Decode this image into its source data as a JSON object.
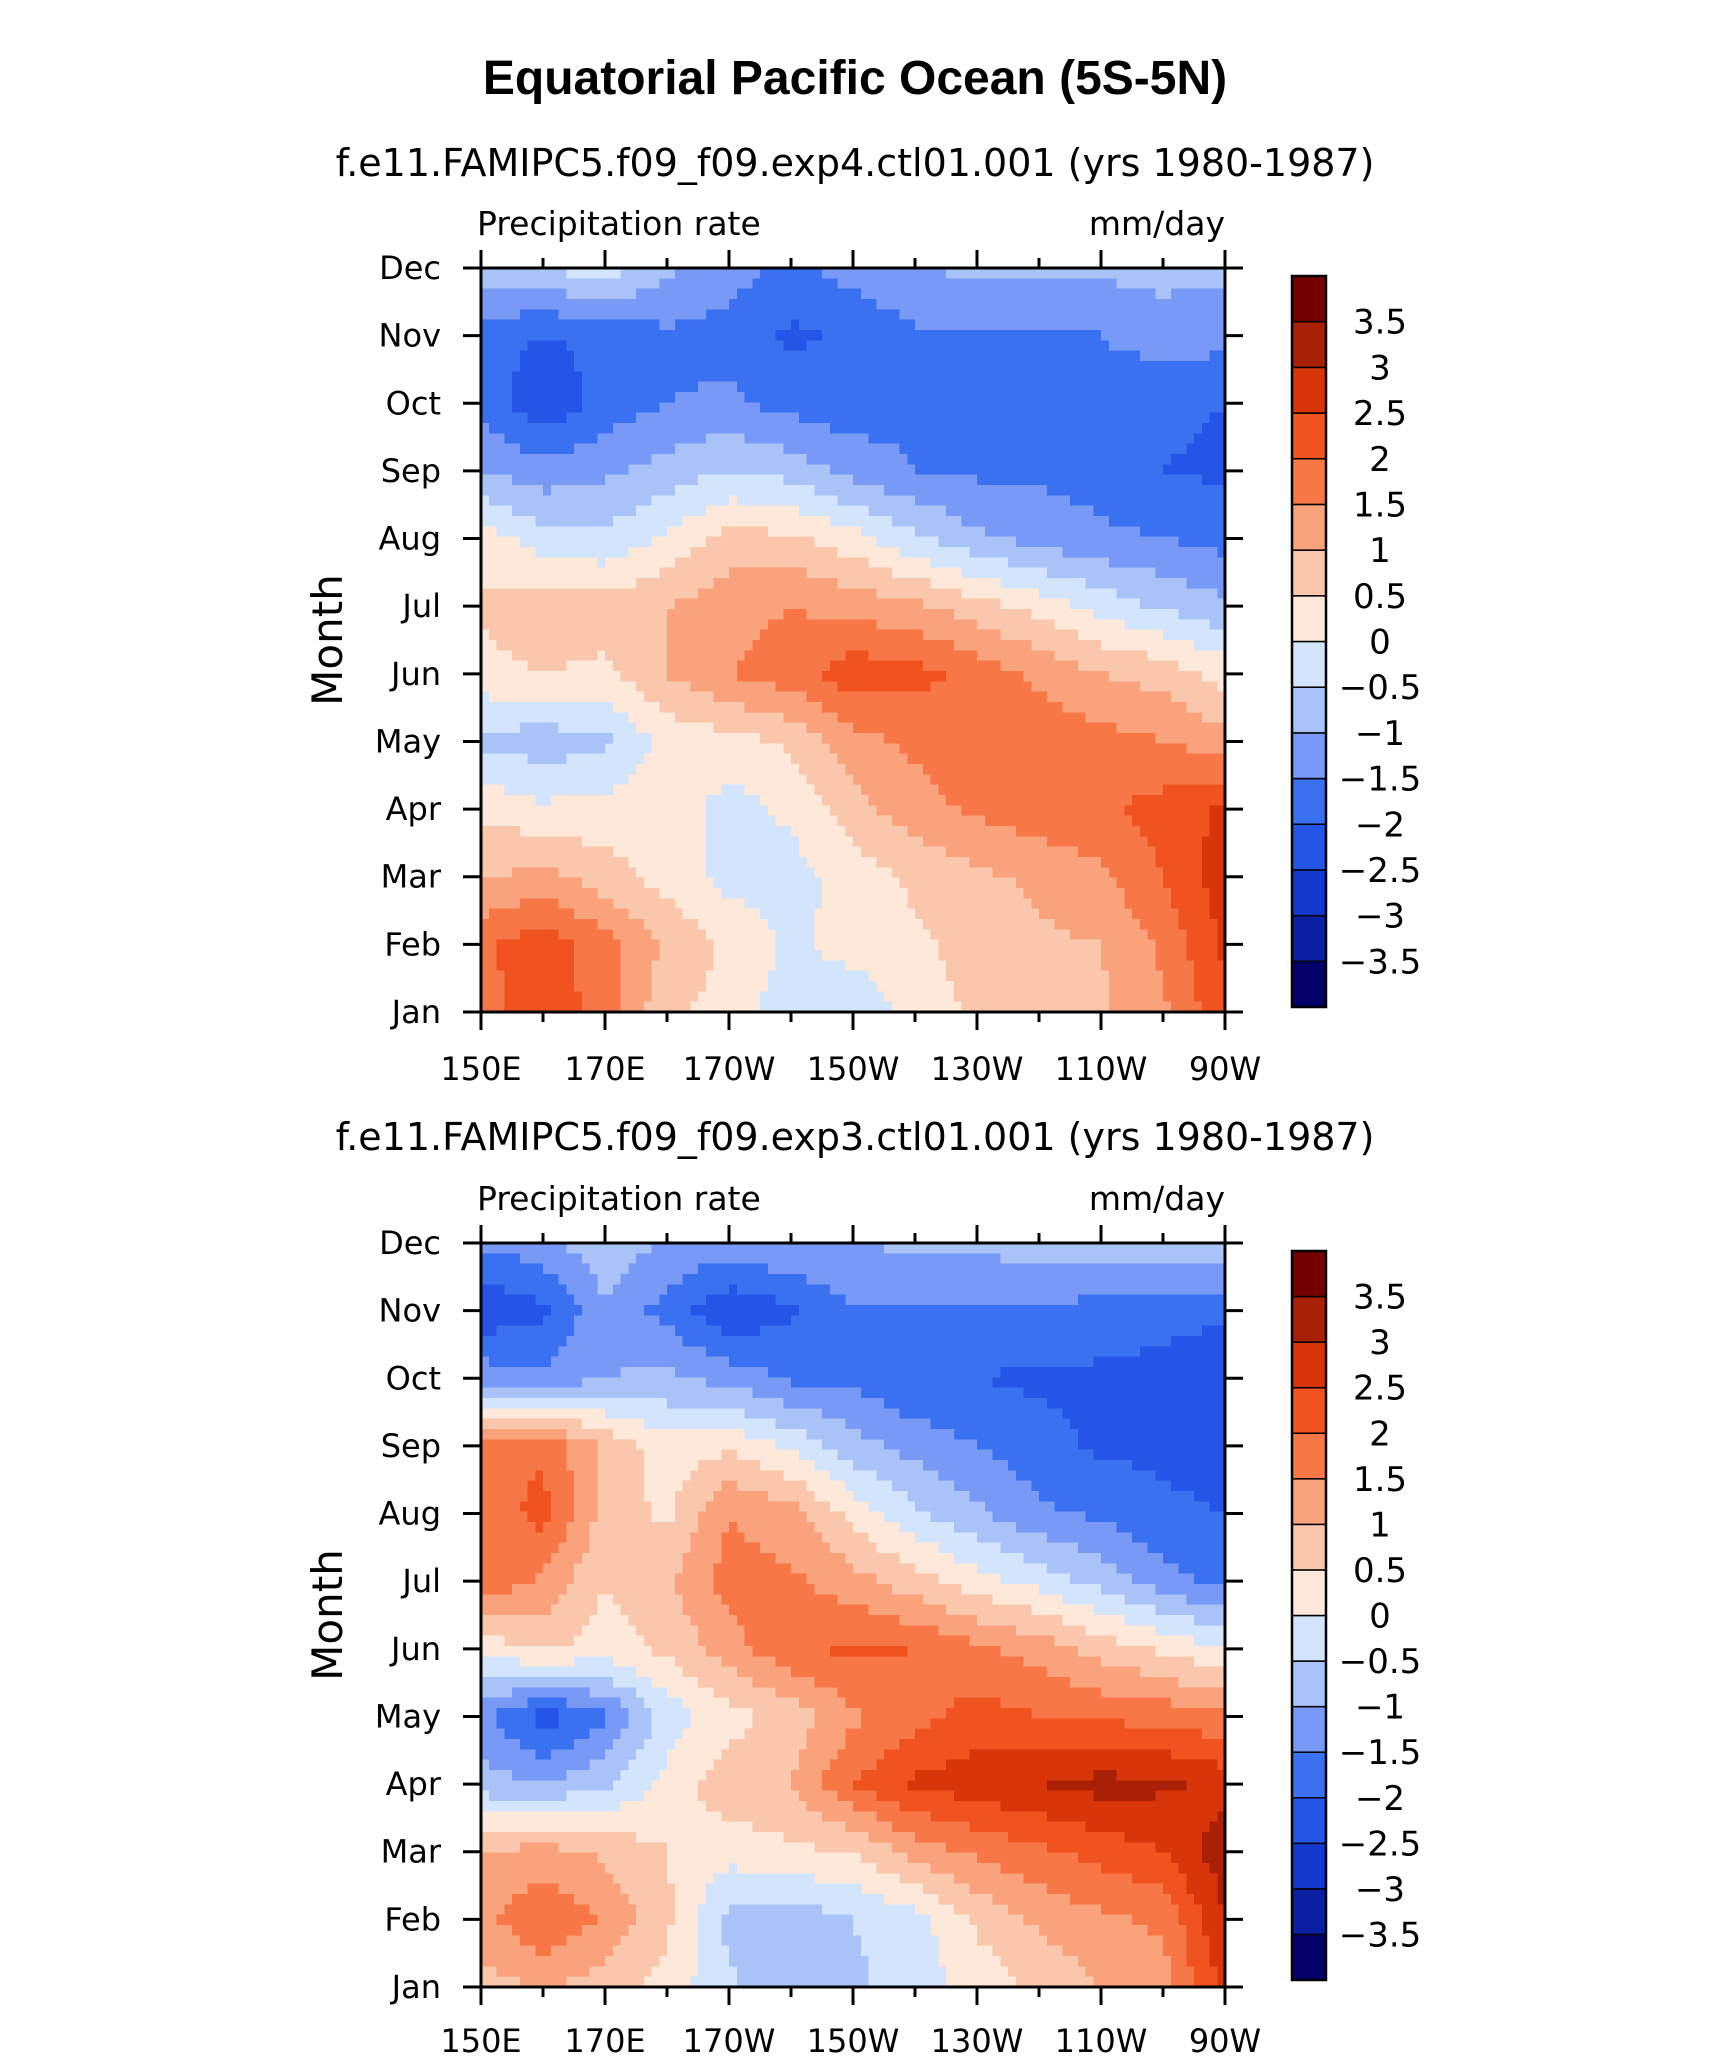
{
  "figure_title": "Equatorial Pacific Ocean (5S-5N)",
  "chart_data": [
    {
      "type": "heatmap",
      "title": "f.e11.FAMIPC5.f09_f09.exp4.ctl01.001 (yrs 1980-1987)",
      "left_label": "Precipitation rate",
      "right_label": "mm/day",
      "ylabel": "Month",
      "xlabel": "",
      "x_ticks": [
        "150E",
        "170E",
        "170W",
        "150W",
        "130W",
        "110W",
        "90W"
      ],
      "x_range": [
        150,
        270
      ],
      "y_ticks": [
        "Jan",
        "Feb",
        "Mar",
        "Apr",
        "May",
        "Jun",
        "Jul",
        "Aug",
        "Sep",
        "Oct",
        "Nov",
        "Dec"
      ],
      "levels": [
        -3.5,
        -3,
        -2.5,
        -2,
        -1.5,
        -1,
        -0.5,
        0,
        0.5,
        1,
        1.5,
        2,
        2.5,
        3,
        3.5
      ],
      "level_labels": [
        "−3.5",
        "−3",
        "−2.5",
        "−2",
        "−1.5",
        "−1",
        "−0.5",
        "0",
        "0.5",
        "1",
        "1.5",
        "2",
        "2.5",
        "3",
        "3.5"
      ],
      "colors": [
        "#03006a",
        "#0a1fa3",
        "#1339cf",
        "#2455e6",
        "#3a71f0",
        "#7899f5",
        "#a9c3f8",
        "#d3e5fc",
        "#fde8da",
        "#fbc7ac",
        "#f9a27b",
        "#f77746",
        "#f0531f",
        "#d8360a",
        "#a92006",
        "#750000"
      ],
      "x_lon": [
        150,
        160,
        170,
        180,
        190,
        200,
        210,
        220,
        230,
        240,
        250,
        260,
        270
      ],
      "values": [
        [
          1.8,
          2.3,
          1.8,
          0.6,
          0.3,
          -0.3,
          -0.4,
          0.2,
          0.6,
          0.8,
          0.9,
          1.4,
          2.4
        ],
        [
          1.9,
          2.3,
          1.7,
          0.9,
          0.4,
          -0.1,
          0.2,
          0.4,
          0.7,
          0.9,
          1.0,
          1.6,
          2.6
        ],
        [
          0.9,
          1.2,
          0.7,
          0.3,
          -0.2,
          -0.2,
          0.2,
          0.6,
          0.9,
          1.1,
          1.4,
          2.0,
          2.8
        ],
        [
          0.4,
          0.1,
          0.2,
          0.3,
          -0.2,
          0.1,
          0.8,
          1.3,
          1.6,
          1.8,
          1.9,
          2.2,
          2.6
        ],
        [
          -0.6,
          -0.8,
          -0.6,
          0.2,
          0.3,
          0.6,
          1.3,
          1.6,
          1.8,
          1.8,
          1.7,
          1.5,
          1.2
        ],
        [
          0.3,
          0.5,
          0.4,
          1.0,
          1.5,
          1.8,
          2.3,
          2.2,
          1.8,
          1.4,
          1.0,
          0.8,
          0.3
        ],
        [
          0.6,
          0.9,
          0.7,
          1.0,
          1.3,
          1.5,
          1.3,
          1.1,
          0.7,
          0.3,
          -0.2,
          -0.6,
          -0.9
        ],
        [
          0.3,
          -0.3,
          -0.4,
          0.1,
          0.7,
          0.6,
          0.2,
          -0.4,
          -0.9,
          -1.2,
          -1.4,
          -1.5,
          -1.7
        ],
        [
          -1.0,
          -1.3,
          -1.1,
          -0.8,
          -0.5,
          -0.7,
          -1.2,
          -1.5,
          -1.6,
          -1.6,
          -1.7,
          -2.0,
          -2.1
        ],
        [
          -1.7,
          -2.4,
          -1.8,
          -1.5,
          -1.4,
          -1.7,
          -1.8,
          -1.6,
          -1.6,
          -1.6,
          -1.6,
          -1.9,
          -2.0
        ],
        [
          -1.8,
          -2.0,
          -1.9,
          -1.6,
          -1.7,
          -2.1,
          -1.9,
          -1.6,
          -1.5,
          -1.6,
          -1.5,
          -1.3,
          -1.3
        ],
        [
          -0.7,
          -0.5,
          -0.2,
          -0.9,
          -1.3,
          -1.6,
          -1.3,
          -1.0,
          -0.9,
          -0.9,
          -0.9,
          -0.8,
          -0.9
        ]
      ]
    },
    {
      "type": "heatmap",
      "title": "f.e11.FAMIPC5.f09_f09.exp3.ctl01.001 (yrs 1980-1987)",
      "left_label": "Precipitation rate",
      "right_label": "mm/day",
      "ylabel": "Month",
      "xlabel": "",
      "x_ticks": [
        "150E",
        "170E",
        "170W",
        "150W",
        "130W",
        "110W",
        "90W"
      ],
      "x_range": [
        150,
        270
      ],
      "y_ticks": [
        "Jan",
        "Feb",
        "Mar",
        "Apr",
        "May",
        "Jun",
        "Jul",
        "Aug",
        "Sep",
        "Oct",
        "Nov",
        "Dec"
      ],
      "levels": [
        -3.5,
        -3,
        -2.5,
        -2,
        -1.5,
        -1,
        -0.5,
        0,
        0.5,
        1,
        1.5,
        2,
        2.5,
        3,
        3.5
      ],
      "level_labels": [
        "−3.5",
        "−3",
        "−2.5",
        "−2",
        "−1.5",
        "−1",
        "−0.5",
        "0",
        "0.5",
        "1",
        "1.5",
        "2",
        "2.5",
        "3",
        "3.5"
      ],
      "colors": [
        "#03006a",
        "#0a1fa3",
        "#1339cf",
        "#2455e6",
        "#3a71f0",
        "#7899f5",
        "#a9c3f8",
        "#d3e5fc",
        "#fde8da",
        "#fbc7ac",
        "#f9a27b",
        "#f77746",
        "#f0531f",
        "#d8360a",
        "#a92006",
        "#750000"
      ],
      "x_lon": [
        150,
        160,
        170,
        180,
        190,
        200,
        210,
        220,
        230,
        240,
        250,
        260,
        270
      ],
      "values": [
        [
          0.8,
          1.0,
          0.8,
          0.3,
          -0.4,
          -0.9,
          -0.6,
          -0.3,
          0.2,
          0.6,
          1.0,
          1.3,
          2.6
        ],
        [
          1.3,
          2.0,
          1.4,
          0.6,
          -0.7,
          -0.8,
          -0.5,
          -0.2,
          0.6,
          1.1,
          1.4,
          1.6,
          3.0
        ],
        [
          1.0,
          1.2,
          0.9,
          0.5,
          0.2,
          0.4,
          0.5,
          1.2,
          1.6,
          1.9,
          2.2,
          2.5,
          3.3
        ],
        [
          -0.8,
          -1.0,
          -0.6,
          0.2,
          0.8,
          1.0,
          2.0,
          2.6,
          2.8,
          3.0,
          3.2,
          3.1,
          2.8
        ],
        [
          -1.3,
          -2.3,
          -1.6,
          -0.3,
          0.3,
          0.7,
          1.4,
          1.8,
          2.2,
          2.0,
          1.9,
          1.8,
          1.6
        ],
        [
          0.2,
          0.6,
          0.3,
          0.6,
          1.3,
          1.9,
          2.1,
          2.0,
          1.6,
          1.3,
          0.8,
          0.4,
          0.0
        ],
        [
          1.9,
          1.4,
          0.5,
          0.9,
          1.7,
          1.6,
          1.2,
          0.7,
          0.2,
          -0.2,
          -0.7,
          -1.3,
          -1.7
        ],
        [
          1.6,
          2.2,
          0.8,
          0.4,
          1.5,
          1.2,
          0.3,
          -0.4,
          -0.9,
          -1.4,
          -1.6,
          -1.9,
          -2.0
        ],
        [
          2.0,
          1.9,
          0.9,
          0.2,
          0.4,
          -0.1,
          -0.8,
          -1.2,
          -1.5,
          -1.8,
          -2.1,
          -2.1,
          -2.2
        ],
        [
          -1.2,
          -1.4,
          -1.0,
          -0.9,
          -1.2,
          -1.6,
          -1.6,
          -2.0,
          -2.0,
          -2.1,
          -2.1,
          -2.2,
          -2.4
        ],
        [
          -2.4,
          -2.1,
          -1.1,
          -1.7,
          -2.4,
          -2.1,
          -1.5,
          -1.6,
          -1.6,
          -1.6,
          -1.7,
          -1.8,
          -1.9
        ],
        [
          -1.4,
          -1.2,
          -0.6,
          -1.1,
          -1.2,
          -1.0,
          -1.0,
          -0.9,
          -0.9,
          -0.7,
          -0.6,
          -0.6,
          -0.6
        ]
      ]
    }
  ]
}
